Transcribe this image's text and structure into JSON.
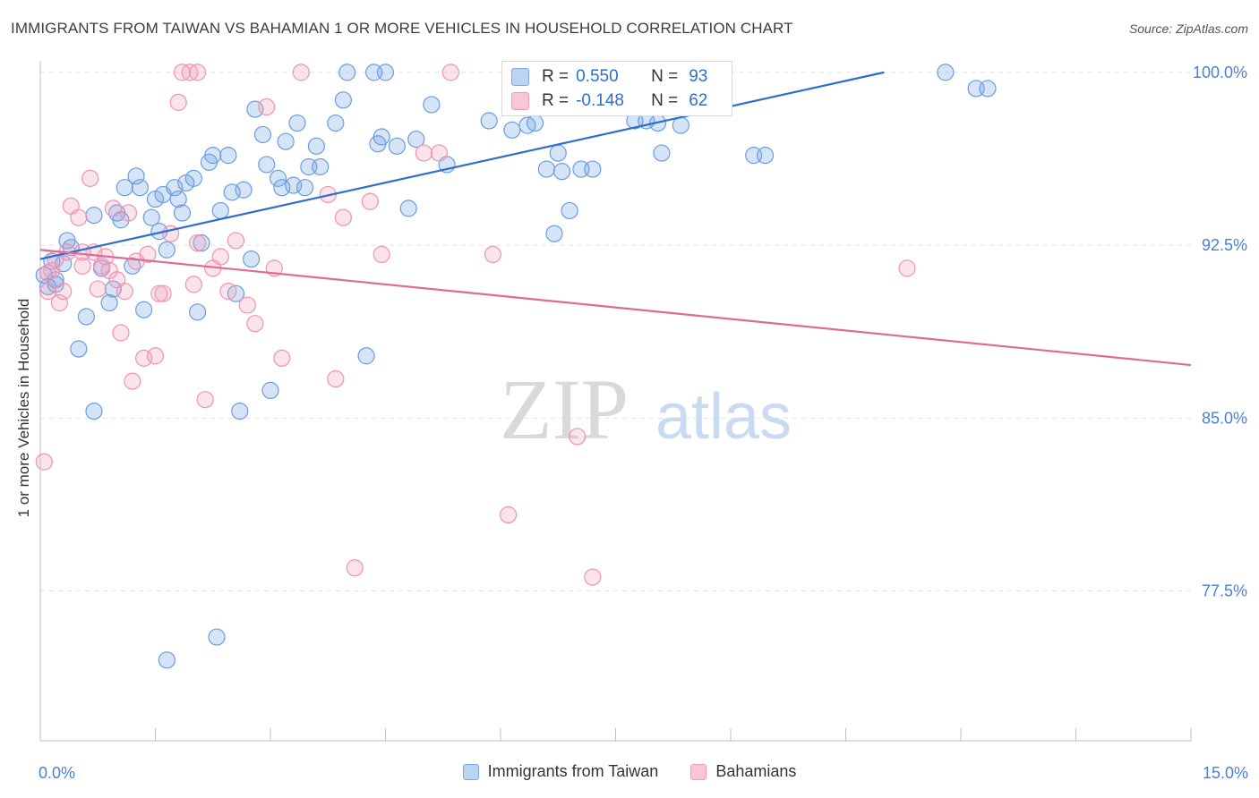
{
  "chart_data": {
    "type": "scatter",
    "title": "IMMIGRANTS FROM TAIWAN VS BAHAMIAN 1 OR MORE VEHICLES IN HOUSEHOLD CORRELATION CHART",
    "source": "Source: ZipAtlas.com",
    "xlabel": "",
    "ylabel": "1 or more Vehicles in Household",
    "xlim": [
      0,
      15
    ],
    "ylim": [
      71,
      100.5
    ],
    "x_tick_labels": [
      "0.0%",
      "15.0%"
    ],
    "y_ticks": [
      77.5,
      85.0,
      92.5,
      100.0
    ],
    "y_tick_labels": [
      "77.5%",
      "85.0%",
      "92.5%",
      "100.0%"
    ],
    "watermark": {
      "zip": "ZIP",
      "atlas": "atlas"
    },
    "stats": {
      "r_label": "R =",
      "n_label": "N =",
      "taiwan_r": "0.550",
      "taiwan_n": "93",
      "bahamian_r": "-0.148",
      "bahamian_n": "62"
    },
    "series": [
      {
        "name": "Immigrants from Taiwan",
        "color": "#7aaae6",
        "trend_color": "#2e6ecd",
        "trend": [
          [
            0.0,
            91.9
          ],
          [
            11.0,
            100.0
          ]
        ],
        "points": [
          [
            0.1,
            90.7
          ],
          [
            0.15,
            91.8
          ],
          [
            0.2,
            90.8
          ],
          [
            0.3,
            91.7
          ],
          [
            0.35,
            92.7
          ],
          [
            0.4,
            92.4
          ],
          [
            0.5,
            88.0
          ],
          [
            0.6,
            89.4
          ],
          [
            0.7,
            85.3
          ],
          [
            0.7,
            93.8
          ],
          [
            0.8,
            91.5
          ],
          [
            0.9,
            90.0
          ],
          [
            0.95,
            90.6
          ],
          [
            1.0,
            93.9
          ],
          [
            1.05,
            93.6
          ],
          [
            1.1,
            95.0
          ],
          [
            1.2,
            91.6
          ],
          [
            1.25,
            95.5
          ],
          [
            1.3,
            95.0
          ],
          [
            1.35,
            89.7
          ],
          [
            1.45,
            93.7
          ],
          [
            1.5,
            94.5
          ],
          [
            1.55,
            93.1
          ],
          [
            1.6,
            94.7
          ],
          [
            1.65,
            92.3
          ],
          [
            1.75,
            95.0
          ],
          [
            1.8,
            94.5
          ],
          [
            1.85,
            93.9
          ],
          [
            1.9,
            95.2
          ],
          [
            2.0,
            95.4
          ],
          [
            2.05,
            89.6
          ],
          [
            2.1,
            92.6
          ],
          [
            2.2,
            96.1
          ],
          [
            2.25,
            96.4
          ],
          [
            2.35,
            94.0
          ],
          [
            2.45,
            96.4
          ],
          [
            2.5,
            94.8
          ],
          [
            2.55,
            90.4
          ],
          [
            2.6,
            85.3
          ],
          [
            2.65,
            94.9
          ],
          [
            2.75,
            91.9
          ],
          [
            2.8,
            98.4
          ],
          [
            2.9,
            97.3
          ],
          [
            2.95,
            96.0
          ],
          [
            3.0,
            86.2
          ],
          [
            3.1,
            95.4
          ],
          [
            3.15,
            95.0
          ],
          [
            3.2,
            97.0
          ],
          [
            3.3,
            95.1
          ],
          [
            3.35,
            97.8
          ],
          [
            3.45,
            95.0
          ],
          [
            3.5,
            95.9
          ],
          [
            3.6,
            96.8
          ],
          [
            3.65,
            95.9
          ],
          [
            3.85,
            97.8
          ],
          [
            3.95,
            98.8
          ],
          [
            4.0,
            100.0
          ],
          [
            4.25,
            87.7
          ],
          [
            4.35,
            100.0
          ],
          [
            4.4,
            96.9
          ],
          [
            4.45,
            97.2
          ],
          [
            4.5,
            100.0
          ],
          [
            4.65,
            96.8
          ],
          [
            4.8,
            94.1
          ],
          [
            4.9,
            97.1
          ],
          [
            5.1,
            98.6
          ],
          [
            5.3,
            96.0
          ],
          [
            5.85,
            97.9
          ],
          [
            6.15,
            97.5
          ],
          [
            6.2,
            100.0
          ],
          [
            6.35,
            97.7
          ],
          [
            6.45,
            97.8
          ],
          [
            6.6,
            95.8
          ],
          [
            6.7,
            93.0
          ],
          [
            6.75,
            96.5
          ],
          [
            6.8,
            95.7
          ],
          [
            6.9,
            94.0
          ],
          [
            7.05,
            95.8
          ],
          [
            7.2,
            95.8
          ],
          [
            7.75,
            97.9
          ],
          [
            7.9,
            97.9
          ],
          [
            8.05,
            97.8
          ],
          [
            8.1,
            96.5
          ],
          [
            8.35,
            97.7
          ],
          [
            9.3,
            96.4
          ],
          [
            9.45,
            96.4
          ],
          [
            11.8,
            100.0
          ],
          [
            12.2,
            99.3
          ],
          [
            12.35,
            99.3
          ],
          [
            1.65,
            74.5
          ],
          [
            2.3,
            75.5
          ],
          [
            0.05,
            91.2
          ],
          [
            0.2,
            91.0
          ]
        ]
      },
      {
        "name": "Bahamians",
        "color": "#f29bb6",
        "trend_color": "#e06a95",
        "trend": [
          [
            0.0,
            92.3
          ],
          [
            15.0,
            87.3
          ]
        ],
        "points": [
          [
            0.05,
            83.1
          ],
          [
            0.1,
            90.5
          ],
          [
            0.15,
            91.4
          ],
          [
            0.25,
            90.0
          ],
          [
            0.3,
            90.5
          ],
          [
            0.35,
            92.2
          ],
          [
            0.4,
            94.2
          ],
          [
            0.5,
            93.7
          ],
          [
            0.55,
            91.6
          ],
          [
            0.65,
            95.4
          ],
          [
            0.7,
            92.2
          ],
          [
            0.75,
            90.6
          ],
          [
            0.8,
            91.6
          ],
          [
            0.85,
            92.0
          ],
          [
            0.9,
            91.4
          ],
          [
            0.95,
            94.1
          ],
          [
            1.0,
            91.0
          ],
          [
            1.05,
            88.7
          ],
          [
            1.1,
            90.5
          ],
          [
            1.15,
            93.9
          ],
          [
            1.2,
            86.6
          ],
          [
            1.25,
            91.8
          ],
          [
            1.35,
            87.6
          ],
          [
            1.4,
            92.1
          ],
          [
            1.5,
            87.7
          ],
          [
            1.6,
            90.4
          ],
          [
            1.7,
            93.0
          ],
          [
            1.8,
            98.7
          ],
          [
            1.95,
            100.0
          ],
          [
            2.0,
            90.8
          ],
          [
            2.05,
            92.6
          ],
          [
            2.15,
            85.8
          ],
          [
            2.25,
            91.5
          ],
          [
            2.35,
            92.0
          ],
          [
            2.45,
            90.5
          ],
          [
            2.55,
            92.7
          ],
          [
            2.7,
            89.9
          ],
          [
            2.8,
            89.1
          ],
          [
            2.95,
            98.5
          ],
          [
            3.05,
            91.5
          ],
          [
            3.15,
            87.6
          ],
          [
            3.4,
            100.0
          ],
          [
            3.75,
            94.7
          ],
          [
            3.85,
            86.7
          ],
          [
            3.95,
            93.7
          ],
          [
            4.1,
            78.5
          ],
          [
            4.3,
            94.4
          ],
          [
            4.45,
            92.1
          ],
          [
            5.0,
            96.5
          ],
          [
            5.2,
            96.5
          ],
          [
            5.35,
            100.0
          ],
          [
            5.9,
            92.1
          ],
          [
            6.1,
            80.8
          ],
          [
            7.0,
            84.2
          ],
          [
            7.2,
            78.1
          ],
          [
            11.3,
            91.5
          ],
          [
            1.85,
            100.0
          ],
          [
            2.05,
            100.0
          ],
          [
            0.2,
            91.9
          ],
          [
            0.1,
            91.3
          ],
          [
            0.55,
            92.2
          ],
          [
            1.55,
            90.4
          ]
        ]
      }
    ]
  }
}
